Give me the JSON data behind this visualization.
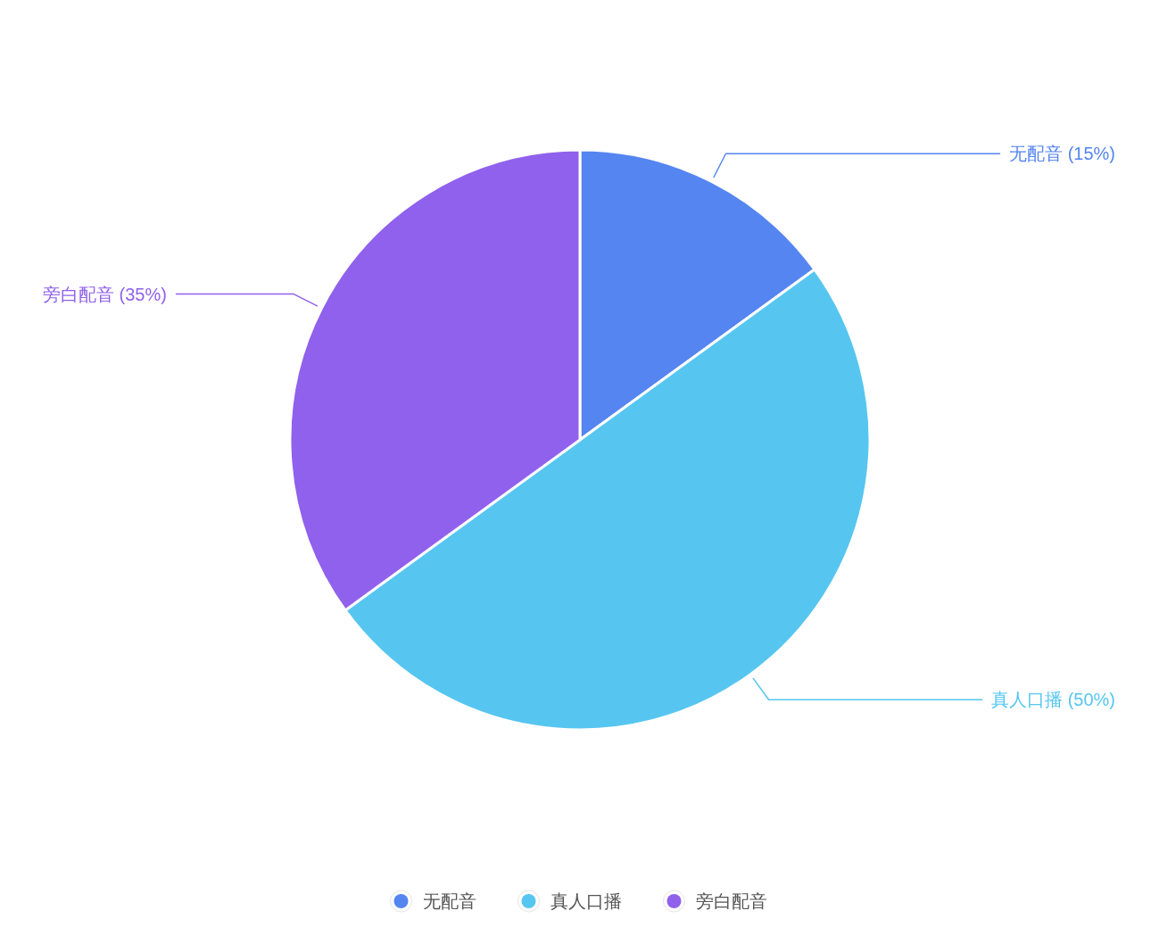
{
  "chart_data": {
    "type": "pie",
    "categories": [
      "无配音",
      "真人口播",
      "旁白配音"
    ],
    "values": [
      15,
      50,
      35
    ],
    "colors": [
      "#5585f0",
      "#56c6f0",
      "#9061ec"
    ],
    "value_labels": [
      "无配音 (15%)",
      "真人口播 (50%)",
      "旁白配音 (35%)"
    ],
    "legend": "bottom"
  }
}
